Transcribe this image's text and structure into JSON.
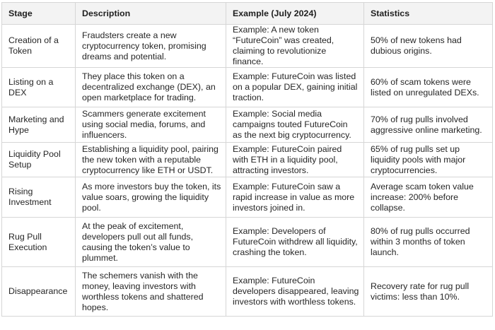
{
  "headers": {
    "stage": "Stage",
    "description": "Description",
    "example": "Example (July 2024)",
    "statistics": "Statistics"
  },
  "rows": [
    {
      "stage": "Creation of a Token",
      "description": "Fraudsters create a new cryptocurrency token, promising dreams and potential.",
      "example": "Example: A new token “FutureCoin” was created, claiming to revolutionize finance.",
      "statistics": "50% of new tokens had dubious origins."
    },
    {
      "stage": "Listing on a DEX",
      "description": "They place this token on a decentralized exchange (DEX), an open marketplace for trading.",
      "example": "Example: FutureCoin was listed on a popular DEX, gaining initial traction.",
      "statistics": "60% of scam tokens were listed on unregulated DEXs."
    },
    {
      "stage": "Marketing and Hype",
      "description": "Scammers generate excitement using social media, forums, and influencers.",
      "example": "Example: Social media campaigns touted FutureCoin as the next big cryptocurrency.",
      "statistics": "70% of rug pulls involved aggressive online marketing."
    },
    {
      "stage": "Liquidity Pool Setup",
      "description": "Establishing a liquidity pool, pairing the new token with a reputable cryptocurrency like ETH or USDT.",
      "example": "Example: FutureCoin paired with ETH in a liquidity pool, attracting investors.",
      "statistics": "65% of rug pulls set up liquidity pools with major cryptocurrencies."
    },
    {
      "stage": "Rising Investment",
      "description": "As more investors buy the token, its value soars, growing the liquidity pool.",
      "example": "Example: FutureCoin saw a rapid increase in value as more investors joined in.",
      "statistics": "Average scam token value increase: 200% before collapse."
    },
    {
      "stage": "Rug Pull Execution",
      "description": "At the peak of excitement, developers pull out all funds, causing the token’s value to plummet.",
      "example": "Example: Developers of FutureCoin withdrew all liquidity, crashing the token.",
      "statistics": "80% of rug pulls occurred within 3 months of token launch."
    },
    {
      "stage": "Disappearance",
      "description": "The schemers vanish with the money, leaving investors with worthless tokens and shattered hopes.",
      "example": "Example: FutureCoin developers disappeared, leaving investors with worthless tokens.",
      "statistics": "Recovery rate for rug pull victims: less than 10%."
    }
  ]
}
